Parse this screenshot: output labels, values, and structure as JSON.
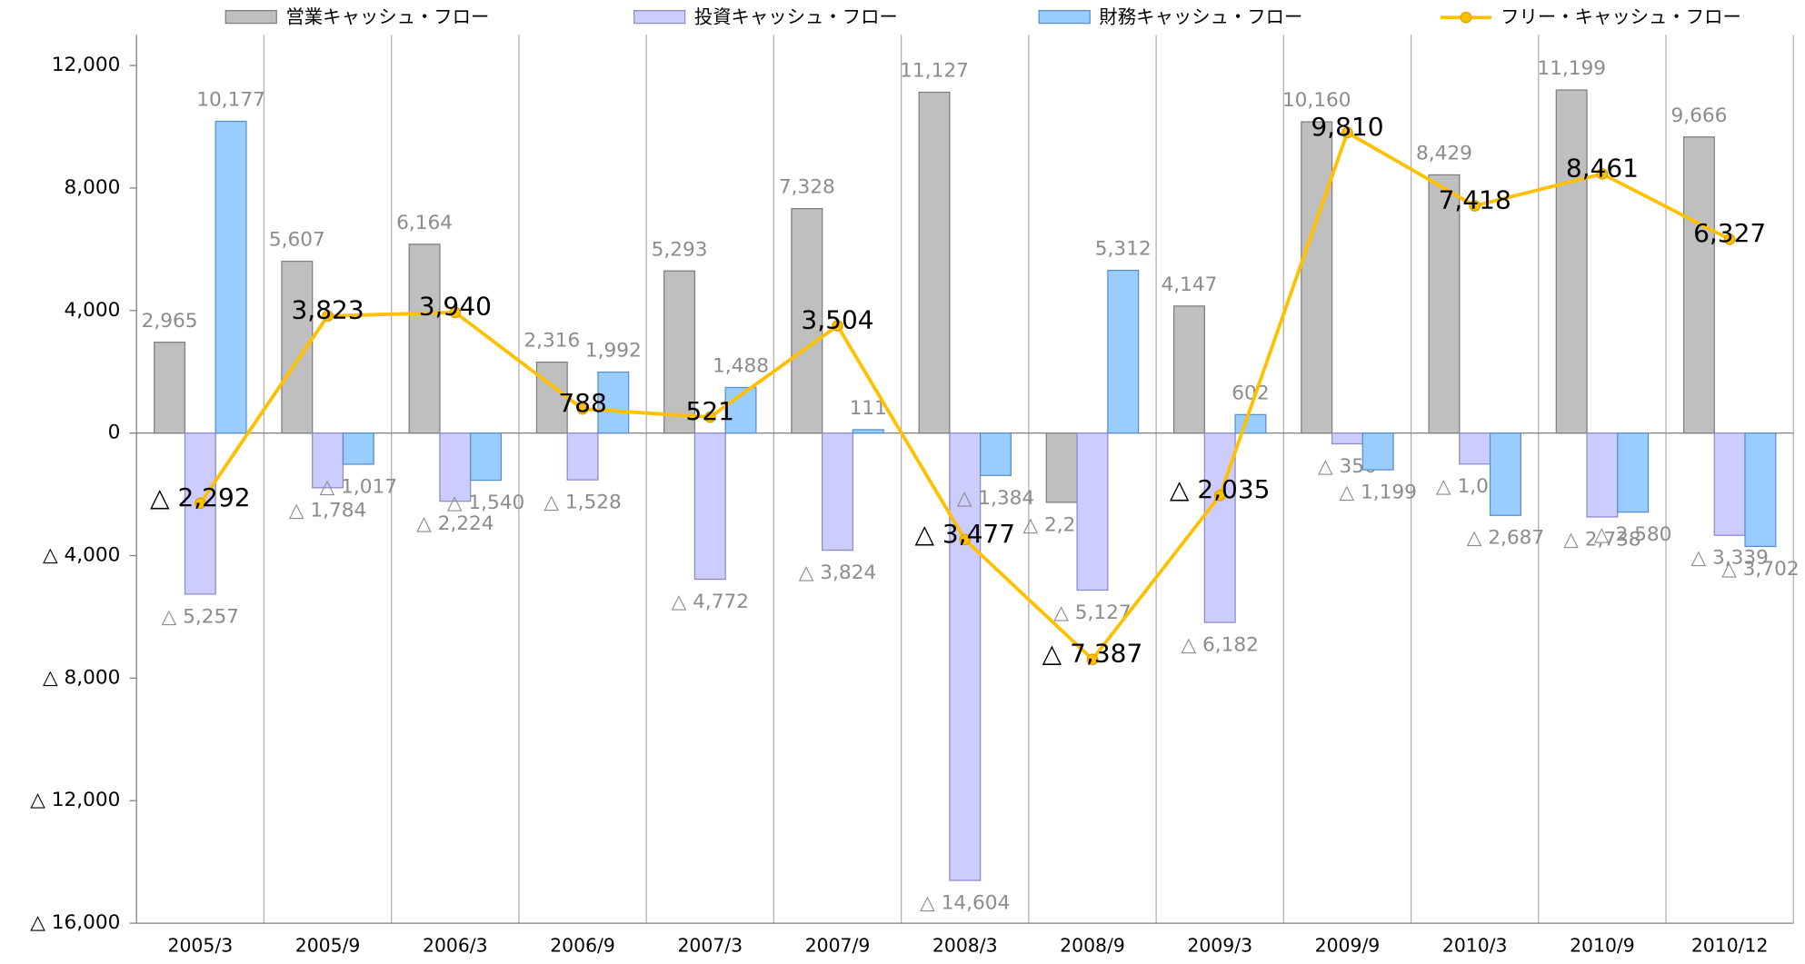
{
  "chart_data": {
    "type": "bar_line",
    "categories": [
      "2005/3",
      "2005/9",
      "2006/3",
      "2006/9",
      "2007/3",
      "2007/9",
      "2008/3",
      "2008/9",
      "2009/3",
      "2009/9",
      "2010/3",
      "2010/9",
      "2010/12"
    ],
    "series": [
      {
        "name": "営業キャッシュ・フロー",
        "type": "bar",
        "color": "#bfbfbf",
        "values": [
          2965,
          5607,
          6164,
          2316,
          5293,
          7328,
          11127,
          -2260,
          4147,
          10160,
          8429,
          11199,
          9666
        ],
        "value_labels": [
          "2,965",
          "5,607",
          "6,164",
          "2,316",
          "5,293",
          "7,328",
          "11,127",
          "△ 2,260",
          "4,147",
          "10,160",
          "8,429",
          "11,199",
          "9,666"
        ]
      },
      {
        "name": "投資キャッシュ・フロー",
        "type": "bar",
        "color": "#ccccff",
        "values": [
          -5257,
          -1784,
          -2224,
          -1528,
          -4772,
          -3824,
          -14604,
          -5127,
          -6182,
          -350,
          -1011,
          -2738,
          -3339
        ],
        "value_labels": [
          "△ 5,257",
          "△ 1,784",
          "△ 2,224",
          "△ 1,528",
          "△ 4,772",
          "△ 3,824",
          "△ 14,604",
          "△ 5,127",
          "△ 6,182",
          "△ 350",
          "△ 1,011",
          "△ 2,738",
          "△ 3,339"
        ]
      },
      {
        "name": "財務キャッシュ・フロー",
        "type": "bar",
        "color": "#99ccff",
        "values": [
          10177,
          -1017,
          -1540,
          1992,
          1488,
          111,
          -1384,
          5312,
          602,
          -1199,
          -2687,
          -2580,
          -3702
        ],
        "value_labels": [
          "10,177",
          "△ 1,017",
          "△ 1,540",
          "1,992",
          "1,488",
          "111",
          "△ 1,384",
          "5,312",
          "602",
          "△ 1,199",
          "△ 2,687",
          "△ 2,580",
          "△ 3,702"
        ]
      },
      {
        "name": "フリー・キャッシュ・フロー",
        "type": "line",
        "color": "#ffc000",
        "values": [
          -2292,
          3823,
          3940,
          788,
          521,
          3504,
          -3477,
          -7387,
          -2035,
          9810,
          7418,
          8461,
          6327
        ],
        "value_labels": [
          "△ 2,292",
          "3,823",
          "3,940",
          "788",
          "521",
          "3,504",
          "△ 3,477",
          "△ 7,387",
          "△ 2,035",
          "9,810",
          "7,418",
          "8,461",
          "6,327"
        ]
      }
    ],
    "ylim": [
      -16000,
      13000
    ],
    "yticks": [
      {
        "value": 12000,
        "label": "12,000"
      },
      {
        "value": 8000,
        "label": "8,000"
      },
      {
        "value": 4000,
        "label": "4,000"
      },
      0,
      {
        "value": -4000,
        "label": "△ 4,000"
      },
      {
        "value": -8000,
        "label": "△ 8,000"
      },
      {
        "value": -12000,
        "label": "△ 12,000"
      },
      {
        "value": -16000,
        "label": "△ 16,000"
      }
    ],
    "legend": "top"
  }
}
